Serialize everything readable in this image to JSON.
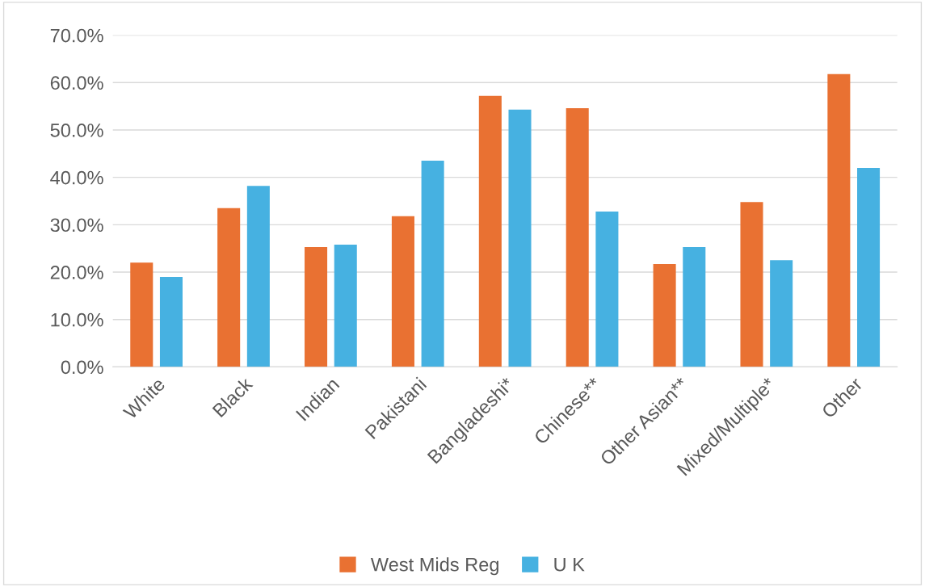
{
  "chart_data": {
    "type": "bar",
    "categories": [
      "White",
      "Black",
      "Indian",
      "Pakistani",
      "Bangladeshi*",
      "Chinese**",
      "Other Asian**",
      "Mixed/Multiple*",
      "Other"
    ],
    "series": [
      {
        "name": "West Mids Reg",
        "color": "#e97132",
        "values": [
          22.0,
          33.5,
          25.3,
          31.8,
          57.2,
          54.6,
          21.7,
          34.8,
          61.8
        ]
      },
      {
        "name": "U K",
        "color": "#46b1e1",
        "values": [
          19.0,
          38.2,
          25.8,
          43.5,
          54.3,
          32.8,
          25.3,
          22.5,
          42.0
        ]
      }
    ],
    "ylim": [
      0,
      70
    ],
    "yticks": [
      {
        "value": 0,
        "label": "0.0%"
      },
      {
        "value": 10,
        "label": "10.0%"
      },
      {
        "value": 20,
        "label": "20.0%"
      },
      {
        "value": 30,
        "label": "30.0%"
      },
      {
        "value": 40,
        "label": "40.0%"
      },
      {
        "value": 50,
        "label": "50.0%"
      },
      {
        "value": 60,
        "label": "60.0%"
      },
      {
        "value": 70,
        "label": "70.0%"
      }
    ],
    "grid": "y",
    "legend": "bottom"
  }
}
